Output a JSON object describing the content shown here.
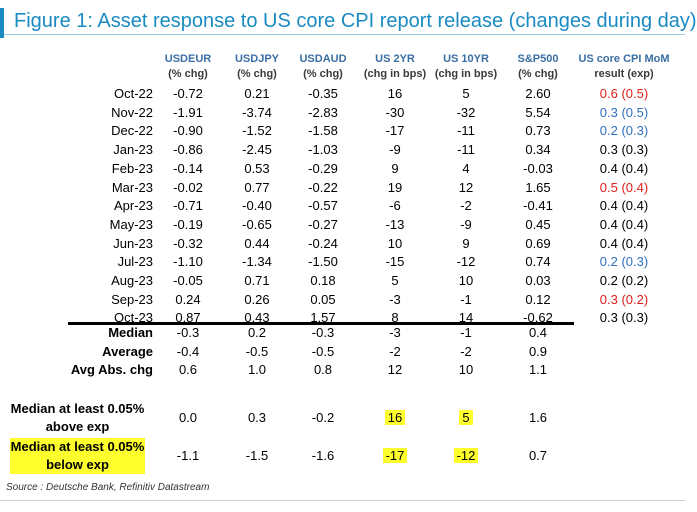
{
  "title": "Figure 1: Asset response to US core CPI report release (changes during day)",
  "columns": [
    {
      "name": "USDEUR",
      "unit": "(% chg)"
    },
    {
      "name": "USDJPY",
      "unit": "(% chg)"
    },
    {
      "name": "USDAUD",
      "unit": "(% chg)"
    },
    {
      "name": "US 2YR",
      "unit": "(chg in bps)"
    },
    {
      "name": "US 10YR",
      "unit": "(chg in bps)"
    },
    {
      "name": "S&P500",
      "unit": "(% chg)"
    },
    {
      "name": "US core CPI MoM",
      "unit": "result (exp)"
    }
  ],
  "rows": [
    {
      "label": "Oct-22",
      "values": [
        "-0.72",
        "0.21",
        "-0.35",
        "16",
        "5",
        "2.60",
        "0.6 (0.5)"
      ],
      "cpi_color": "red"
    },
    {
      "label": "Nov-22",
      "values": [
        "-1.91",
        "-3.74",
        "-2.83",
        "-30",
        "-32",
        "5.54",
        "0.3 (0.5)"
      ],
      "cpi_color": "blue"
    },
    {
      "label": "Dec-22",
      "values": [
        "-0.90",
        "-1.52",
        "-1.58",
        "-17",
        "-11",
        "0.73",
        "0.2 (0.3)"
      ],
      "cpi_color": "blue"
    },
    {
      "label": "Jan-23",
      "values": [
        "-0.86",
        "-2.45",
        "-1.03",
        "-9",
        "-11",
        "0.34",
        "0.3 (0.3)"
      ],
      "cpi_color": "black"
    },
    {
      "label": "Feb-23",
      "values": [
        "-0.14",
        "0.53",
        "-0.29",
        "9",
        "4",
        "-0.03",
        "0.4 (0.4)"
      ],
      "cpi_color": "black"
    },
    {
      "label": "Mar-23",
      "values": [
        "-0.02",
        "0.77",
        "-0.22",
        "19",
        "12",
        "1.65",
        "0.5 (0.4)"
      ],
      "cpi_color": "red"
    },
    {
      "label": "Apr-23",
      "values": [
        "-0.71",
        "-0.40",
        "-0.57",
        "-6",
        "-2",
        "-0.41",
        "0.4 (0.4)"
      ],
      "cpi_color": "black"
    },
    {
      "label": "May-23",
      "values": [
        "-0.19",
        "-0.65",
        "-0.27",
        "-13",
        "-9",
        "0.45",
        "0.4 (0.4)"
      ],
      "cpi_color": "black"
    },
    {
      "label": "Jun-23",
      "values": [
        "-0.32",
        "0.44",
        "-0.24",
        "10",
        "9",
        "0.69",
        "0.4 (0.4)"
      ],
      "cpi_color": "black"
    },
    {
      "label": "Jul-23",
      "values": [
        "-1.10",
        "-1.34",
        "-1.50",
        "-15",
        "-12",
        "0.74",
        "0.2 (0.3)"
      ],
      "cpi_color": "blue"
    },
    {
      "label": "Aug-23",
      "values": [
        "-0.05",
        "0.71",
        "0.18",
        "5",
        "10",
        "0.03",
        "0.2 (0.2)"
      ],
      "cpi_color": "black"
    },
    {
      "label": "Sep-23",
      "values": [
        "0.24",
        "0.26",
        "0.05",
        "-3",
        "-1",
        "0.12",
        "0.3 (0.2)"
      ],
      "cpi_color": "red"
    },
    {
      "label": "Oct-23",
      "values": [
        "0.87",
        "0.43",
        "1.57",
        "8",
        "14",
        "-0.62",
        "0.3 (0.3)"
      ],
      "cpi_color": "black"
    }
  ],
  "summary": [
    {
      "label": "Median",
      "values": [
        "-0.3",
        "0.2",
        "-0.3",
        "-3",
        "-1",
        "0.4"
      ]
    },
    {
      "label": "Average",
      "values": [
        "-0.4",
        "-0.5",
        "-0.5",
        "-2",
        "-2",
        "0.9"
      ]
    },
    {
      "label": "Avg Abs. chg",
      "values": [
        "0.6",
        "1.0",
        "0.8",
        "12",
        "10",
        "1.1"
      ]
    }
  ],
  "conditional": [
    {
      "label_line1": "Median at least 0.05%",
      "label_line2": "above exp",
      "values": [
        "0.0",
        "0.3",
        "-0.2",
        "16",
        "5",
        "1.6"
      ]
    },
    {
      "label_line1": "Median at least 0.05%",
      "label_line2": "below exp",
      "values": [
        "-1.1",
        "-1.5",
        "-1.6",
        "-17",
        "-12",
        "0.7"
      ]
    }
  ],
  "source": "Source : Deutsche Bank, Refinitiv Datastream",
  "colors": {
    "title": "#1a8bc2",
    "header": "#3a6fa5",
    "red": "#e0201b",
    "blue": "#2f6fbf",
    "highlight": "#ffff2e"
  }
}
